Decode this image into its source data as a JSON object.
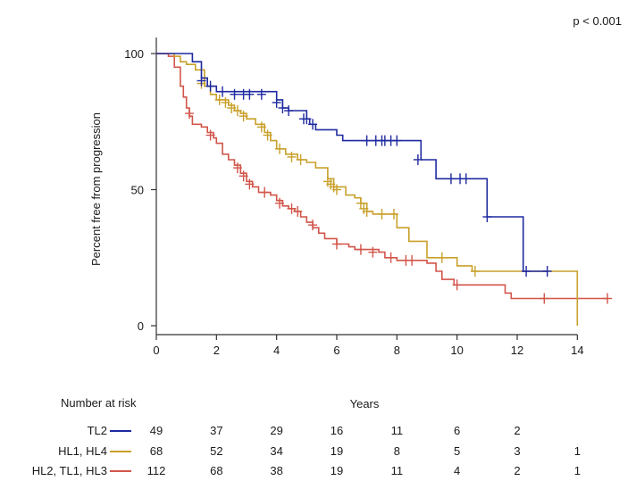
{
  "chart_data": {
    "type": "line",
    "subtype": "kaplan-meier",
    "pvalue_label": "p < 0.001",
    "ylabel": "Percent free from progression",
    "xlabel": "Years",
    "xlim": [
      0,
      15
    ],
    "ylim": [
      0,
      100
    ],
    "x_ticks": [
      0,
      2,
      4,
      6,
      8,
      10,
      12,
      14
    ],
    "y_ticks": [
      0,
      50,
      100
    ],
    "grid": false,
    "colors": {
      "TL2": "#1f2aa0",
      "HL1, HL4": "#c8a02a",
      "HL2, TL1, HL3": "#d2554a"
    },
    "series": [
      {
        "name": "TL2",
        "color": "#1f2aa0",
        "steps": [
          [
            0,
            100
          ],
          [
            1.2,
            97
          ],
          [
            1.5,
            91
          ],
          [
            1.7,
            88
          ],
          [
            2.0,
            86
          ],
          [
            3.2,
            86
          ],
          [
            4.0,
            83
          ],
          [
            4.2,
            80
          ],
          [
            4.4,
            79
          ],
          [
            5.0,
            76
          ],
          [
            5.1,
            74
          ],
          [
            5.3,
            72
          ],
          [
            6.0,
            70
          ],
          [
            6.2,
            68
          ],
          [
            8.2,
            68
          ],
          [
            8.8,
            61
          ],
          [
            9.3,
            54
          ],
          [
            10.0,
            54
          ],
          [
            11.0,
            40
          ],
          [
            12.2,
            20
          ],
          [
            13.0,
            20
          ]
        ],
        "censored": [
          [
            1.5,
            90
          ],
          [
            1.8,
            88
          ],
          [
            2.2,
            86
          ],
          [
            2.6,
            85
          ],
          [
            2.9,
            85
          ],
          [
            3.1,
            85
          ],
          [
            3.5,
            85
          ],
          [
            4.0,
            82
          ],
          [
            4.2,
            80
          ],
          [
            4.4,
            79
          ],
          [
            4.9,
            76
          ],
          [
            5.0,
            76
          ],
          [
            5.2,
            74
          ],
          [
            7.0,
            68
          ],
          [
            7.3,
            68
          ],
          [
            7.5,
            68
          ],
          [
            7.6,
            68
          ],
          [
            7.8,
            68
          ],
          [
            8.0,
            68
          ],
          [
            8.7,
            61
          ],
          [
            9.8,
            54
          ],
          [
            10.1,
            54
          ],
          [
            10.3,
            54
          ],
          [
            11.0,
            40
          ],
          [
            12.3,
            20
          ],
          [
            13.0,
            20
          ]
        ]
      },
      {
        "name": "HL1, HL4",
        "color": "#c8a02a",
        "steps": [
          [
            0,
            100
          ],
          [
            0.6,
            99
          ],
          [
            0.8,
            97
          ],
          [
            1.0,
            96
          ],
          [
            1.3,
            94
          ],
          [
            1.6,
            88
          ],
          [
            1.8,
            85
          ],
          [
            2.0,
            83
          ],
          [
            2.4,
            81
          ],
          [
            2.6,
            79
          ],
          [
            2.8,
            78
          ],
          [
            3.0,
            76
          ],
          [
            3.3,
            74
          ],
          [
            3.6,
            71
          ],
          [
            3.8,
            68
          ],
          [
            4.0,
            65
          ],
          [
            4.3,
            63
          ],
          [
            4.7,
            61
          ],
          [
            5.0,
            60
          ],
          [
            5.3,
            58
          ],
          [
            5.7,
            54
          ],
          [
            5.9,
            51
          ],
          [
            6.3,
            48
          ],
          [
            6.6,
            47
          ],
          [
            6.8,
            45
          ],
          [
            7.0,
            42
          ],
          [
            7.2,
            41
          ],
          [
            7.7,
            41
          ],
          [
            8.0,
            36
          ],
          [
            8.4,
            31
          ],
          [
            9.0,
            25
          ],
          [
            10.0,
            22
          ],
          [
            10.5,
            20
          ],
          [
            14.0,
            20
          ],
          [
            14.0,
            0
          ]
        ],
        "censored": [
          [
            1.5,
            89
          ],
          [
            2.1,
            83
          ],
          [
            2.3,
            82
          ],
          [
            2.5,
            80
          ],
          [
            2.7,
            79
          ],
          [
            2.9,
            77
          ],
          [
            3.5,
            73
          ],
          [
            3.7,
            70
          ],
          [
            4.1,
            65
          ],
          [
            4.5,
            62
          ],
          [
            4.8,
            61
          ],
          [
            5.7,
            53
          ],
          [
            5.8,
            52
          ],
          [
            5.9,
            51
          ],
          [
            6.0,
            50
          ],
          [
            6.8,
            45
          ],
          [
            6.9,
            43
          ],
          [
            7.0,
            42
          ],
          [
            7.5,
            41
          ],
          [
            7.9,
            41
          ],
          [
            9.5,
            25
          ],
          [
            10.6,
            20
          ]
        ]
      },
      {
        "name": "HL2, TL1, HL3",
        "color": "#d2554a",
        "steps": [
          [
            0,
            100
          ],
          [
            0.4,
            99
          ],
          [
            0.6,
            95
          ],
          [
            0.8,
            88
          ],
          [
            0.9,
            84
          ],
          [
            1.0,
            80
          ],
          [
            1.1,
            77
          ],
          [
            1.2,
            74
          ],
          [
            1.5,
            73
          ],
          [
            1.7,
            71
          ],
          [
            1.9,
            69
          ],
          [
            2.0,
            67
          ],
          [
            2.2,
            63
          ],
          [
            2.4,
            61
          ],
          [
            2.6,
            59
          ],
          [
            2.8,
            56
          ],
          [
            3.0,
            53
          ],
          [
            3.2,
            51
          ],
          [
            3.4,
            49
          ],
          [
            3.8,
            48
          ],
          [
            4.0,
            46
          ],
          [
            4.2,
            44
          ],
          [
            4.4,
            43
          ],
          [
            4.6,
            42
          ],
          [
            4.8,
            40
          ],
          [
            5.0,
            38
          ],
          [
            5.2,
            36
          ],
          [
            5.4,
            34
          ],
          [
            5.6,
            32
          ],
          [
            6.0,
            30
          ],
          [
            6.4,
            29
          ],
          [
            6.6,
            28
          ],
          [
            7.4,
            27
          ],
          [
            7.6,
            25
          ],
          [
            8.0,
            24
          ],
          [
            9.0,
            23
          ],
          [
            9.3,
            20
          ],
          [
            9.5,
            17
          ],
          [
            9.9,
            15
          ],
          [
            11.0,
            15
          ],
          [
            11.6,
            12
          ],
          [
            11.8,
            10
          ],
          [
            15.0,
            10
          ]
        ],
        "censored": [
          [
            1.1,
            78
          ],
          [
            1.8,
            70
          ],
          [
            2.7,
            58
          ],
          [
            2.9,
            55
          ],
          [
            3.1,
            52
          ],
          [
            3.6,
            49
          ],
          [
            4.1,
            45
          ],
          [
            4.5,
            43
          ],
          [
            4.7,
            42
          ],
          [
            5.2,
            37
          ],
          [
            6.0,
            30
          ],
          [
            6.8,
            28
          ],
          [
            7.2,
            27
          ],
          [
            7.8,
            25
          ],
          [
            8.3,
            24
          ],
          [
            8.5,
            24
          ],
          [
            10.0,
            15
          ],
          [
            12.9,
            10
          ],
          [
            15.0,
            10
          ]
        ]
      }
    ]
  },
  "risk_table": {
    "title": "Number at risk",
    "rows": [
      {
        "label": "TL2",
        "color": "#1f2aa0",
        "values": [
          "49",
          "37",
          "29",
          "16",
          "11",
          "6",
          "2",
          ""
        ]
      },
      {
        "label": "HL1, HL4",
        "color": "#c8a02a",
        "values": [
          "68",
          "52",
          "34",
          "19",
          "8",
          "5",
          "3",
          "1"
        ]
      },
      {
        "label": "HL2, TL1, HL3",
        "color": "#d2554a",
        "values": [
          "112",
          "68",
          "38",
          "19",
          "11",
          "4",
          "2",
          "1"
        ]
      }
    ]
  }
}
